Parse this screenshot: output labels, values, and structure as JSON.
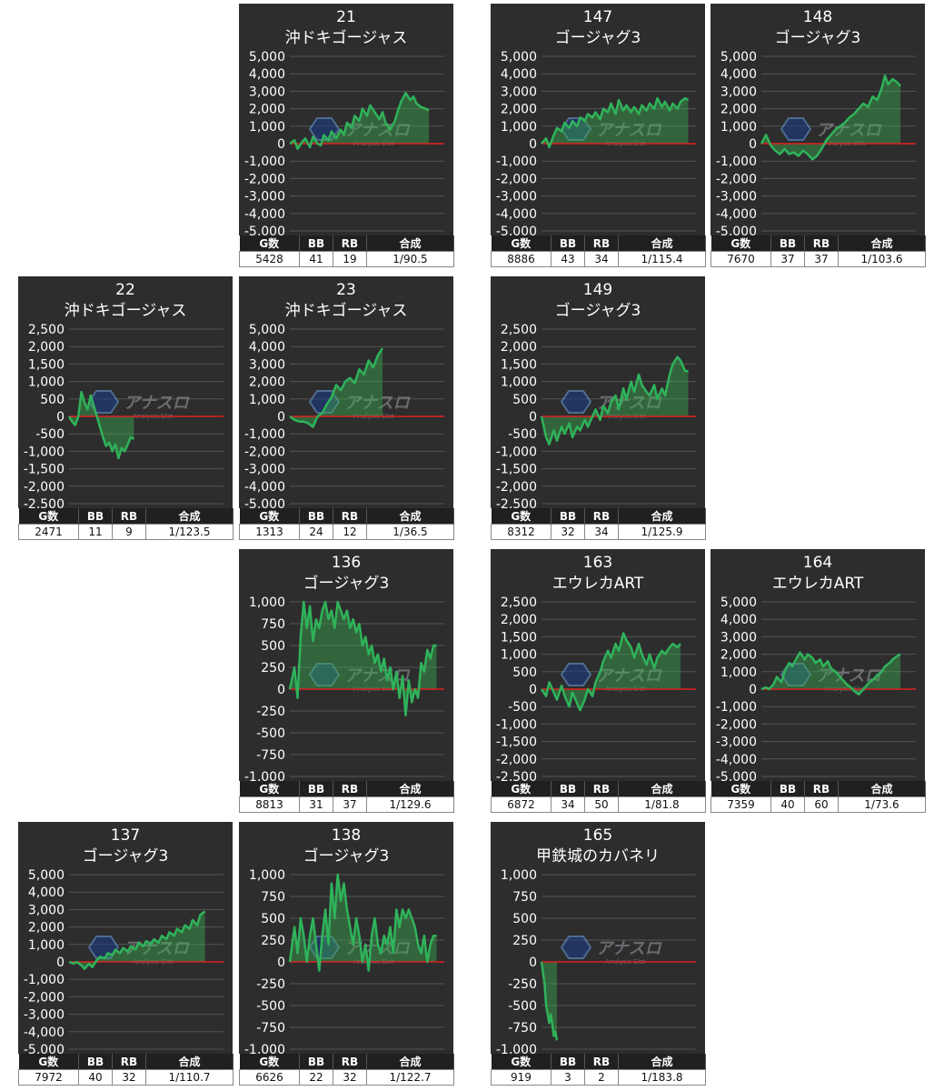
{
  "headers": {
    "games": "G数",
    "bb": "BB",
    "rb": "RB",
    "combined": "合成"
  },
  "colors": {
    "panel_bg": "#2d2d2d",
    "line": "#2fb35a",
    "fill": "rgba(60,170,80,0.45)",
    "zero_line": "#e02020",
    "grid": "#555555",
    "text": "#ffffff"
  },
  "watermark": {
    "logo_text": "アナスロ",
    "sub_text": "Analysis Slot"
  },
  "chart_data": [
    {
      "type": "line",
      "machine_no": "21",
      "title": "沖ドキゴージャス",
      "yticks": [
        "5,000",
        "4,000",
        "3,000",
        "2,000",
        "1,000",
        "0",
        "-1,000",
        "-2,000",
        "-3,000",
        "-4,000",
        "-5,000"
      ],
      "ylim": [
        -5000,
        5000
      ],
      "x": [
        0,
        0.03,
        0.05,
        0.08,
        0.1,
        0.13,
        0.15,
        0.18,
        0.2,
        0.22,
        0.25,
        0.27,
        0.3,
        0.33,
        0.35,
        0.37,
        0.4,
        0.42,
        0.45,
        0.47,
        0.5,
        0.52,
        0.55,
        0.58,
        0.6,
        0.62,
        0.65,
        0.68,
        0.7,
        0.72,
        0.75,
        0.78,
        0.8,
        0.82,
        0.85,
        0.88,
        0.9
      ],
      "y": [
        0,
        200,
        -300,
        100,
        300,
        -200,
        400,
        0,
        -100,
        500,
        200,
        700,
        300,
        800,
        500,
        1200,
        900,
        1600,
        1300,
        2000,
        1600,
        2200,
        1800,
        1400,
        1800,
        1200,
        800,
        1300,
        1900,
        2400,
        2900,
        2500,
        2700,
        2300,
        2100,
        2000,
        1900
      ],
      "stats": {
        "games": "5428",
        "bb": "41",
        "rb": "19",
        "combined": "1/90.5"
      }
    },
    {
      "type": "line",
      "machine_no": "147",
      "title": "ゴージャグ3",
      "yticks": [
        "5,000",
        "4,000",
        "3,000",
        "2,000",
        "1,000",
        "0",
        "-1,000",
        "-2,000",
        "-3,000",
        "-4,000",
        "-5,000"
      ],
      "ylim": [
        -5000,
        5000
      ],
      "x": [
        0,
        0.03,
        0.05,
        0.08,
        0.1,
        0.13,
        0.15,
        0.18,
        0.2,
        0.23,
        0.25,
        0.28,
        0.3,
        0.33,
        0.35,
        0.38,
        0.4,
        0.43,
        0.45,
        0.48,
        0.5,
        0.53,
        0.55,
        0.58,
        0.6,
        0.63,
        0.65,
        0.68,
        0.7,
        0.73,
        0.75,
        0.78,
        0.8,
        0.83,
        0.85,
        0.88,
        0.9,
        0.93,
        0.95
      ],
      "y": [
        0,
        300,
        -200,
        500,
        900,
        700,
        1200,
        900,
        1300,
        1000,
        1500,
        1300,
        1700,
        1500,
        1800,
        1400,
        2000,
        1800,
        2300,
        1700,
        2500,
        1900,
        2200,
        1800,
        2100,
        1700,
        2200,
        1900,
        2300,
        2000,
        2600,
        2100,
        2400,
        1900,
        2300,
        2000,
        2400,
        2600,
        2500
      ],
      "stats": {
        "games": "8886",
        "bb": "43",
        "rb": "34",
        "combined": "1/115.4"
      }
    },
    {
      "type": "line",
      "machine_no": "148",
      "title": "ゴージャグ3",
      "yticks": [
        "5,000",
        "4,000",
        "3,000",
        "2,000",
        "1,000",
        "0",
        "-1,000",
        "-2,000",
        "-3,000",
        "-4,000",
        "-5,000"
      ],
      "ylim": [
        -5000,
        5000
      ],
      "x": [
        0,
        0.03,
        0.06,
        0.09,
        0.12,
        0.15,
        0.18,
        0.21,
        0.24,
        0.27,
        0.3,
        0.33,
        0.36,
        0.39,
        0.42,
        0.45,
        0.48,
        0.51,
        0.54,
        0.57,
        0.6,
        0.63,
        0.66,
        0.69,
        0.72,
        0.75,
        0.78,
        0.8,
        0.82,
        0.85,
        0.88,
        0.9
      ],
      "y": [
        0,
        500,
        -100,
        -400,
        -600,
        -300,
        -600,
        -500,
        -700,
        -400,
        -600,
        -900,
        -700,
        -300,
        200,
        500,
        800,
        1000,
        1200,
        1500,
        1700,
        2000,
        2300,
        2100,
        2700,
        2500,
        3200,
        3900,
        3400,
        3700,
        3500,
        3300
      ],
      "stats": {
        "games": "7670",
        "bb": "37",
        "rb": "37",
        "combined": "1/103.6"
      }
    },
    {
      "type": "line",
      "machine_no": "22",
      "title": "沖ドキゴージャス",
      "yticks": [
        "2,500",
        "2,000",
        "1,500",
        "1,000",
        "500",
        "0",
        "-500",
        "-1,000",
        "-1,500",
        "-2,000",
        "-2,500"
      ],
      "ylim": [
        -2500,
        2500
      ],
      "x": [
        0,
        0.02,
        0.04,
        0.06,
        0.08,
        0.1,
        0.12,
        0.14,
        0.16,
        0.18,
        0.2,
        0.22,
        0.24,
        0.26,
        0.28,
        0.3,
        0.32,
        0.34,
        0.36,
        0.38,
        0.4,
        0.42
      ],
      "y": [
        0,
        -150,
        -250,
        0,
        700,
        400,
        200,
        600,
        300,
        0,
        -300,
        -600,
        -850,
        -750,
        -1000,
        -800,
        -1200,
        -900,
        -1000,
        -800,
        -600,
        -650
      ],
      "stats": {
        "games": "2471",
        "bb": "11",
        "rb": "9",
        "combined": "1/123.5"
      }
    },
    {
      "type": "line",
      "machine_no": "23",
      "title": "沖ドキゴージャス",
      "yticks": [
        "5,000",
        "4,000",
        "3,000",
        "2,000",
        "1,000",
        "0",
        "-1,000",
        "-2,000",
        "-3,000",
        "-4,000",
        "-5,000"
      ],
      "ylim": [
        -5000,
        5000
      ],
      "x": [
        0,
        0.03,
        0.06,
        0.09,
        0.12,
        0.15,
        0.18,
        0.21,
        0.24,
        0.27,
        0.3,
        0.33,
        0.36,
        0.39,
        0.42,
        0.45,
        0.48,
        0.51,
        0.54,
        0.57,
        0.6
      ],
      "y": [
        0,
        -200,
        -300,
        -300,
        -400,
        -600,
        0,
        200,
        700,
        1100,
        1800,
        1500,
        2000,
        2200,
        1900,
        2700,
        2400,
        3200,
        2800,
        3500,
        3900
      ],
      "stats": {
        "games": "1313",
        "bb": "24",
        "rb": "12",
        "combined": "1/36.5"
      }
    },
    {
      "type": "line",
      "machine_no": "149",
      "title": "ゴージャグ3",
      "yticks": [
        "2,500",
        "2,000",
        "1,500",
        "1,000",
        "500",
        "0",
        "-500",
        "-1,000",
        "-1,500",
        "-2,000",
        "-2,500"
      ],
      "ylim": [
        -2500,
        2500
      ],
      "x": [
        0,
        0.03,
        0.05,
        0.08,
        0.1,
        0.13,
        0.15,
        0.18,
        0.2,
        0.23,
        0.25,
        0.28,
        0.3,
        0.33,
        0.35,
        0.38,
        0.4,
        0.43,
        0.45,
        0.48,
        0.5,
        0.53,
        0.55,
        0.58,
        0.6,
        0.63,
        0.65,
        0.68,
        0.7,
        0.73,
        0.75,
        0.78,
        0.8,
        0.83,
        0.85,
        0.88,
        0.9,
        0.93,
        0.95
      ],
      "y": [
        0,
        -600,
        -800,
        -400,
        -700,
        -300,
        -500,
        -200,
        -600,
        -300,
        -400,
        -100,
        -300,
        0,
        200,
        -100,
        300,
        100,
        400,
        600,
        200,
        800,
        500,
        1000,
        700,
        1200,
        900,
        700,
        600,
        900,
        500,
        800,
        600,
        1200,
        1500,
        1700,
        1600,
        1300,
        1300
      ],
      "stats": {
        "games": "8312",
        "bb": "32",
        "rb": "34",
        "combined": "1/125.9"
      }
    },
    {
      "type": "line",
      "machine_no": "136",
      "title": "ゴージャグ3",
      "yticks": [
        "1,000",
        "750",
        "500",
        "250",
        "0",
        "-250",
        "-500",
        "-750",
        "-1,000"
      ],
      "ylim": [
        -1000,
        1000
      ],
      "x": [
        0,
        0.03,
        0.05,
        0.07,
        0.09,
        0.11,
        0.13,
        0.15,
        0.17,
        0.19,
        0.21,
        0.23,
        0.25,
        0.27,
        0.29,
        0.31,
        0.33,
        0.35,
        0.37,
        0.39,
        0.41,
        0.43,
        0.45,
        0.47,
        0.49,
        0.51,
        0.53,
        0.55,
        0.57,
        0.59,
        0.61,
        0.63,
        0.65,
        0.67,
        0.69,
        0.71,
        0.73,
        0.75,
        0.77,
        0.79,
        0.81,
        0.83,
        0.85,
        0.87,
        0.89,
        0.91,
        0.93,
        0.95
      ],
      "y": [
        0,
        250,
        -100,
        600,
        1000,
        700,
        950,
        550,
        800,
        700,
        900,
        1000,
        800,
        900,
        700,
        1000,
        900,
        800,
        900,
        700,
        800,
        650,
        750,
        500,
        600,
        400,
        500,
        300,
        400,
        200,
        350,
        100,
        250,
        0,
        200,
        -100,
        150,
        -300,
        100,
        -150,
        0,
        -100,
        300,
        200,
        450,
        350,
        500,
        500
      ],
      "stats": {
        "games": "8813",
        "bb": "31",
        "rb": "37",
        "combined": "1/129.6"
      }
    },
    {
      "type": "line",
      "machine_no": "163",
      "title": "エウレカART",
      "yticks": [
        "2,500",
        "2,000",
        "1,500",
        "1,000",
        "500",
        "0",
        "-500",
        "-1,000",
        "-1,500",
        "-2,000",
        "-2,500"
      ],
      "ylim": [
        -2500,
        2500
      ],
      "x": [
        0,
        0.03,
        0.05,
        0.08,
        0.1,
        0.13,
        0.15,
        0.18,
        0.2,
        0.23,
        0.25,
        0.28,
        0.3,
        0.33,
        0.35,
        0.38,
        0.4,
        0.43,
        0.45,
        0.48,
        0.5,
        0.53,
        0.55,
        0.58,
        0.6,
        0.63,
        0.65,
        0.68,
        0.7,
        0.73,
        0.75,
        0.78,
        0.8,
        0.83,
        0.85,
        0.88,
        0.9
      ],
      "y": [
        0,
        -200,
        200,
        -100,
        -300,
        100,
        -200,
        -500,
        -100,
        -400,
        -600,
        -300,
        0,
        -200,
        200,
        500,
        800,
        1100,
        900,
        1300,
        1100,
        1600,
        1400,
        1200,
        900,
        1300,
        1000,
        700,
        1000,
        600,
        900,
        1100,
        1000,
        1200,
        1300,
        1200,
        1300
      ],
      "stats": {
        "games": "6872",
        "bb": "34",
        "rb": "50",
        "combined": "1/81.8"
      }
    },
    {
      "type": "line",
      "machine_no": "164",
      "title": "エウレカART",
      "yticks": [
        "5,000",
        "4,000",
        "3,000",
        "2,000",
        "1,000",
        "0",
        "-1,000",
        "-2,000",
        "-3,000",
        "-4,000",
        "-5,000"
      ],
      "ylim": [
        -5000,
        5000
      ],
      "x": [
        0,
        0.03,
        0.05,
        0.08,
        0.1,
        0.13,
        0.15,
        0.18,
        0.2,
        0.23,
        0.25,
        0.28,
        0.3,
        0.33,
        0.35,
        0.38,
        0.4,
        0.43,
        0.45,
        0.48,
        0.5,
        0.53,
        0.55,
        0.58,
        0.6,
        0.63,
        0.65,
        0.68,
        0.7,
        0.73,
        0.75,
        0.78,
        0.8,
        0.83,
        0.85,
        0.88,
        0.9
      ],
      "y": [
        0,
        100,
        0,
        300,
        700,
        400,
        1000,
        1500,
        1300,
        1800,
        2100,
        1700,
        2000,
        1800,
        1500,
        1700,
        1300,
        1600,
        1200,
        1000,
        800,
        500,
        300,
        100,
        -100,
        -300,
        -100,
        200,
        400,
        600,
        800,
        1000,
        1300,
        1500,
        1700,
        1900,
        2000
      ],
      "stats": {
        "games": "7359",
        "bb": "40",
        "rb": "60",
        "combined": "1/73.6"
      }
    },
    {
      "type": "line",
      "machine_no": "137",
      "title": "ゴージャグ3",
      "yticks": [
        "5,000",
        "4,000",
        "3,000",
        "2,000",
        "1,000",
        "0",
        "-1,000",
        "-2,000",
        "-3,000",
        "-4,000",
        "-5,000"
      ],
      "ylim": [
        -5000,
        5000
      ],
      "x": [
        0,
        0.03,
        0.05,
        0.08,
        0.1,
        0.13,
        0.15,
        0.18,
        0.2,
        0.23,
        0.25,
        0.28,
        0.3,
        0.33,
        0.35,
        0.38,
        0.4,
        0.43,
        0.45,
        0.48,
        0.5,
        0.53,
        0.55,
        0.58,
        0.6,
        0.63,
        0.65,
        0.68,
        0.7,
        0.73,
        0.75,
        0.78,
        0.8,
        0.83,
        0.85,
        0.88
      ],
      "y": [
        0,
        -100,
        0,
        -200,
        -400,
        -100,
        -300,
        100,
        300,
        200,
        500,
        400,
        700,
        500,
        800,
        600,
        900,
        700,
        1100,
        900,
        1200,
        1000,
        1300,
        1100,
        1500,
        1300,
        1700,
        1500,
        1900,
        1700,
        2100,
        1900,
        2400,
        2100,
        2700,
        2900
      ],
      "stats": {
        "games": "7972",
        "bb": "40",
        "rb": "32",
        "combined": "1/110.7"
      }
    },
    {
      "type": "line",
      "machine_no": "138",
      "title": "ゴージャグ3",
      "yticks": [
        "1,000",
        "750",
        "500",
        "250",
        "0",
        "-250",
        "-500",
        "-750",
        "-1,000"
      ],
      "ylim": [
        -1000,
        1000
      ],
      "x": [
        0,
        0.03,
        0.05,
        0.07,
        0.09,
        0.11,
        0.13,
        0.15,
        0.17,
        0.19,
        0.21,
        0.23,
        0.25,
        0.27,
        0.29,
        0.31,
        0.33,
        0.35,
        0.37,
        0.39,
        0.41,
        0.43,
        0.45,
        0.47,
        0.49,
        0.51,
        0.53,
        0.55,
        0.57,
        0.59,
        0.61,
        0.63,
        0.65,
        0.67,
        0.69,
        0.71,
        0.73,
        0.75,
        0.77,
        0.79,
        0.81,
        0.83,
        0.85,
        0.87,
        0.89,
        0.91,
        0.93,
        0.95
      ],
      "y": [
        0,
        400,
        100,
        500,
        300,
        0,
        300,
        500,
        200,
        -100,
        300,
        600,
        200,
        900,
        500,
        1000,
        700,
        900,
        600,
        400,
        200,
        500,
        300,
        0,
        200,
        -100,
        300,
        500,
        200,
        100,
        300,
        200,
        400,
        100,
        600,
        400,
        600,
        500,
        600,
        500,
        400,
        200,
        100,
        300,
        0,
        200,
        300,
        300
      ],
      "stats": {
        "games": "6626",
        "bb": "22",
        "rb": "32",
        "combined": "1/122.7"
      }
    },
    {
      "type": "line",
      "machine_no": "165",
      "title": "甲鉄城のカバネリ",
      "yticks": [
        "1,000",
        "750",
        "500",
        "250",
        "0",
        "-250",
        "-500",
        "-750",
        "-1,000"
      ],
      "ylim": [
        -1000,
        1000
      ],
      "x": [
        0,
        0.02,
        0.03,
        0.05,
        0.06,
        0.08,
        0.09,
        0.1
      ],
      "y": [
        0,
        -250,
        -500,
        -700,
        -600,
        -850,
        -800,
        -900
      ],
      "stats": {
        "games": "919",
        "bb": "3",
        "rb": "2",
        "combined": "1/183.8"
      }
    }
  ]
}
